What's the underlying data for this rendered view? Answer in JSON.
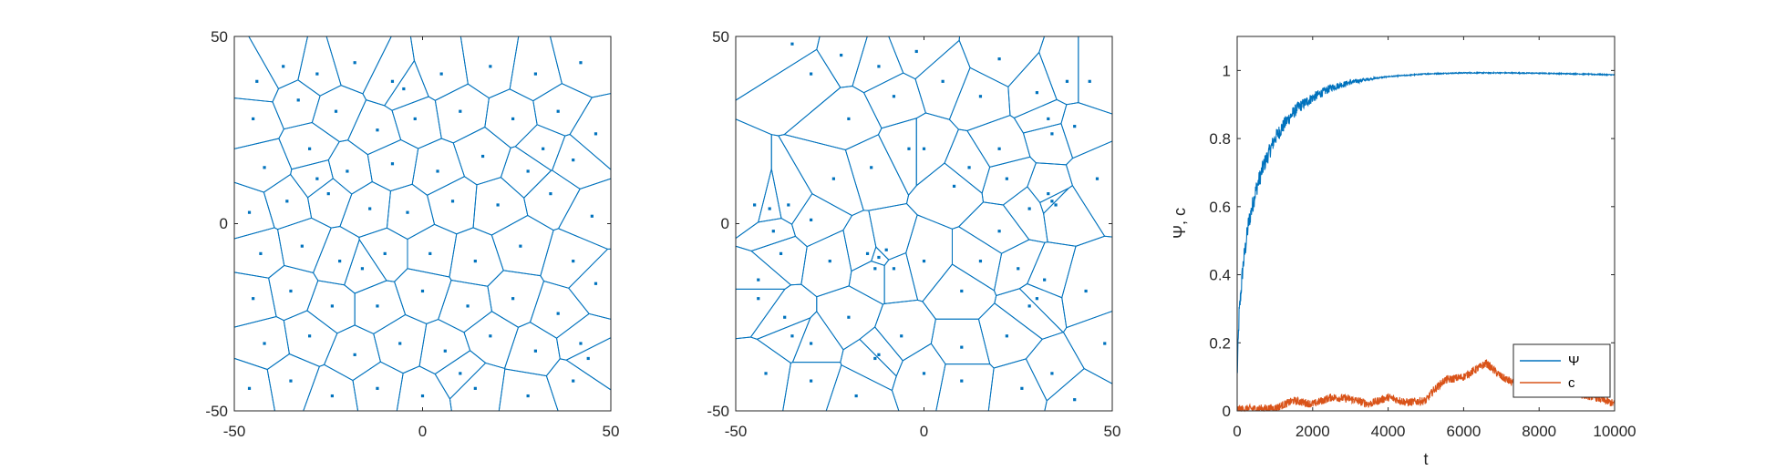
{
  "colors": {
    "blue": "#0072BD",
    "orange": "#D95319",
    "axis": "#262626"
  },
  "chart_data": [
    {
      "type": "voronoi",
      "xlim": [
        -50,
        50
      ],
      "ylim": [
        -50,
        50
      ],
      "xticks": [
        "-50",
        "0",
        "50"
      ],
      "yticks": [
        "-50",
        "0",
        "50"
      ],
      "seed_pattern": "uniform",
      "points": [
        [
          -44,
          38
        ],
        [
          -37,
          42
        ],
        [
          -28,
          40
        ],
        [
          -18,
          43
        ],
        [
          -8,
          38
        ],
        [
          5,
          40
        ],
        [
          18,
          42
        ],
        [
          30,
          40
        ],
        [
          42,
          43
        ],
        [
          -45,
          28
        ],
        [
          -33,
          33
        ],
        [
          -23,
          30
        ],
        [
          -12,
          25
        ],
        [
          -2,
          28
        ],
        [
          10,
          30
        ],
        [
          24,
          28
        ],
        [
          36,
          30
        ],
        [
          46,
          24
        ],
        [
          -42,
          15
        ],
        [
          -30,
          20
        ],
        [
          -20,
          14
        ],
        [
          -8,
          16
        ],
        [
          4,
          14
        ],
        [
          16,
          18
        ],
        [
          28,
          14
        ],
        [
          40,
          17
        ],
        [
          -46,
          3
        ],
        [
          -36,
          6
        ],
        [
          -25,
          8
        ],
        [
          -14,
          4
        ],
        [
          -4,
          3
        ],
        [
          8,
          6
        ],
        [
          20,
          5
        ],
        [
          34,
          8
        ],
        [
          45,
          2
        ],
        [
          -43,
          -8
        ],
        [
          -32,
          -6
        ],
        [
          -22,
          -10
        ],
        [
          -10,
          -8
        ],
        [
          2,
          -8
        ],
        [
          14,
          -10
        ],
        [
          26,
          -6
        ],
        [
          40,
          -10
        ],
        [
          -45,
          -20
        ],
        [
          -35,
          -18
        ],
        [
          -24,
          -22
        ],
        [
          -12,
          -22
        ],
        [
          0,
          -18
        ],
        [
          12,
          -22
        ],
        [
          24,
          -20
        ],
        [
          36,
          -24
        ],
        [
          46,
          -16
        ],
        [
          -42,
          -32
        ],
        [
          -30,
          -30
        ],
        [
          -18,
          -35
        ],
        [
          -6,
          -32
        ],
        [
          6,
          -34
        ],
        [
          18,
          -30
        ],
        [
          30,
          -34
        ],
        [
          42,
          -32
        ],
        [
          -46,
          -44
        ],
        [
          -35,
          -42
        ],
        [
          -24,
          -46
        ],
        [
          -12,
          -44
        ],
        [
          0,
          -46
        ],
        [
          14,
          -44
        ],
        [
          28,
          -46
        ],
        [
          40,
          -42
        ],
        [
          -28,
          12
        ],
        [
          10,
          -40
        ],
        [
          32,
          20
        ],
        [
          -16,
          -12
        ],
        [
          44,
          -36
        ],
        [
          -5,
          36
        ]
      ]
    },
    {
      "type": "voronoi",
      "xlim": [
        -50,
        50
      ],
      "ylim": [
        -50,
        50
      ],
      "xticks": [
        "-50",
        "0",
        "50"
      ],
      "yticks": [
        "-50",
        "0",
        "50"
      ],
      "seed_pattern": "clustered",
      "points": [
        [
          -35,
          48
        ],
        [
          -12,
          42
        ],
        [
          -30,
          40
        ],
        [
          -8,
          34
        ],
        [
          -20,
          28
        ],
        [
          0,
          20
        ],
        [
          15,
          34
        ],
        [
          30,
          35
        ],
        [
          38,
          38
        ],
        [
          40,
          26
        ],
        [
          33,
          28
        ],
        [
          34,
          24
        ],
        [
          46,
          12
        ],
        [
          33,
          8
        ],
        [
          34,
          6
        ],
        [
          35,
          5
        ],
        [
          20,
          20
        ],
        [
          22,
          12
        ],
        [
          12,
          15
        ],
        [
          -45,
          5
        ],
        [
          -41,
          4
        ],
        [
          -40,
          -2
        ],
        [
          -36,
          5
        ],
        [
          -30,
          1
        ],
        [
          -24,
          12
        ],
        [
          -14,
          15
        ],
        [
          -4,
          20
        ],
        [
          8,
          10
        ],
        [
          28,
          4
        ],
        [
          20,
          -2
        ],
        [
          10,
          -18
        ],
        [
          -10,
          -7
        ],
        [
          -12,
          -9
        ],
        [
          -15,
          -8
        ],
        [
          -13,
          -12
        ],
        [
          -8,
          -12
        ],
        [
          0,
          -10
        ],
        [
          -44,
          -15
        ],
        [
          -44,
          -20
        ],
        [
          -37,
          -25
        ],
        [
          -35,
          -30
        ],
        [
          -30,
          -32
        ],
        [
          -20,
          -25
        ],
        [
          -6,
          -30
        ],
        [
          -12,
          -35
        ],
        [
          -13,
          -36
        ],
        [
          10,
          -33
        ],
        [
          22,
          -30
        ],
        [
          30,
          -20
        ],
        [
          32,
          -15
        ],
        [
          28,
          -22
        ],
        [
          43,
          -18
        ],
        [
          48,
          -32
        ],
        [
          -42,
          -40
        ],
        [
          -30,
          -42
        ],
        [
          0,
          -40
        ],
        [
          10,
          -42
        ],
        [
          26,
          -44
        ],
        [
          34,
          -40
        ],
        [
          40,
          -47
        ],
        [
          -18,
          -46
        ],
        [
          15,
          -10
        ],
        [
          25,
          -12
        ],
        [
          -25,
          -10
        ],
        [
          -38,
          -8
        ],
        [
          5,
          38
        ],
        [
          20,
          44
        ],
        [
          -2,
          46
        ],
        [
          44,
          38
        ],
        [
          -22,
          45
        ]
      ]
    },
    {
      "type": "line",
      "xlabel": "t",
      "ylabel": "Ψ, c",
      "xlim": [
        0,
        10000
      ],
      "ylim": [
        0,
        1.1
      ],
      "xticks": [
        "0",
        "2000",
        "4000",
        "6000",
        "8000",
        "10000"
      ],
      "yticks": [
        "0",
        "0.2",
        "0.4",
        "0.6",
        "0.8",
        "1"
      ],
      "legend_placement": "bottom-right",
      "series": [
        {
          "name": "Ψ",
          "color": "#0072BD",
          "noise": 0.03,
          "x": [
            0,
            50,
            150,
            300,
            500,
            700,
            1000,
            1300,
            1600,
            2000,
            2500,
            3000,
            3500,
            4000,
            5000,
            6000,
            7000,
            8000,
            9000,
            10000
          ],
          "values": [
            0.1,
            0.28,
            0.42,
            0.55,
            0.65,
            0.72,
            0.8,
            0.85,
            0.89,
            0.92,
            0.95,
            0.965,
            0.975,
            0.982,
            0.99,
            0.993,
            0.993,
            0.992,
            0.99,
            0.987
          ]
        },
        {
          "name": "c",
          "color": "#D95319",
          "noise": 0.012,
          "x": [
            0,
            1000,
            1500,
            2000,
            2500,
            3000,
            3500,
            4000,
            4500,
            5000,
            5200,
            5500,
            6000,
            6300,
            6600,
            6800,
            7000,
            7500,
            8000,
            8500,
            9000,
            9500,
            10000
          ],
          "values": [
            0.005,
            0.008,
            0.03,
            0.02,
            0.04,
            0.035,
            0.02,
            0.04,
            0.025,
            0.03,
            0.06,
            0.09,
            0.1,
            0.12,
            0.14,
            0.12,
            0.1,
            0.07,
            0.05,
            0.08,
            0.05,
            0.04,
            0.02
          ]
        }
      ]
    }
  ]
}
